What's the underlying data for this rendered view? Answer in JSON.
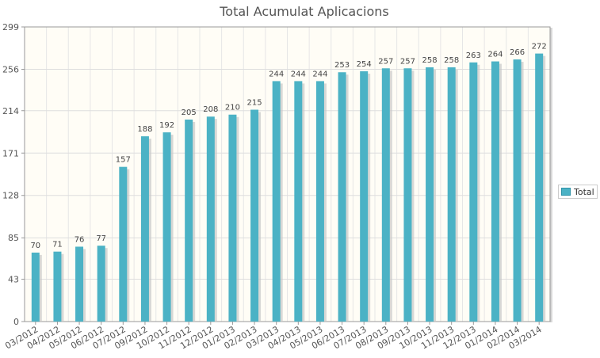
{
  "chart_data": {
    "type": "bar",
    "title": "Total Acumulat Aplicacions",
    "categories": [
      "03/2012",
      "04/2012",
      "05/2012",
      "06/2012",
      "07/2012",
      "09/2012",
      "10/2012",
      "11/2012",
      "12/2012",
      "01/2013",
      "02/2013",
      "03/2013",
      "04/2013",
      "05/2013",
      "06/2013",
      "07/2013",
      "08/2013",
      "09/2013",
      "10/2013",
      "11/2013",
      "12/2013",
      "01/2014",
      "02/2014",
      "03/2014"
    ],
    "series": [
      {
        "name": "Total",
        "color": "#4bb2c5",
        "values": [
          70,
          71,
          76,
          77,
          157,
          188,
          192,
          205,
          208,
          210,
          215,
          244,
          244,
          244,
          253,
          254,
          257,
          257,
          258,
          258,
          263,
          264,
          266,
          272
        ]
      }
    ],
    "yticks": [
      0,
      43,
      85,
      128,
      171,
      214,
      256,
      299
    ],
    "ylim": [
      0,
      299
    ],
    "grid": true,
    "legend_position": "right",
    "xlabel": "",
    "ylabel": ""
  }
}
